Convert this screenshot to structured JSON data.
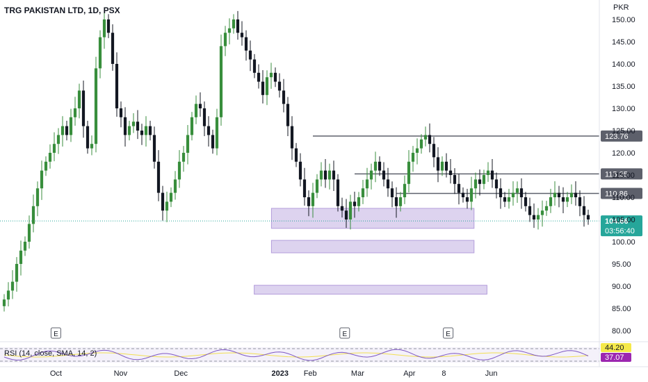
{
  "header": {
    "symbol_title": "TRG PAKISTAN LTD, 1D, PSX",
    "currency": "PKR"
  },
  "price_axis": {
    "ticks": [
      "150.00",
      "145.00",
      "140.00",
      "135.00",
      "130.00",
      "125.00",
      "120.00",
      "115.00",
      "110.00",
      "105.00",
      "100.00",
      "95.00",
      "90.00",
      "85.00",
      "80.00"
    ],
    "tick_values": [
      150,
      145,
      140,
      135,
      130,
      125,
      120,
      115,
      110,
      105,
      100,
      95,
      90,
      85,
      80
    ]
  },
  "time_axis": {
    "labels": [
      "Oct",
      "Nov",
      "Dec",
      "2023",
      "Feb",
      "Mar",
      "Apr",
      "8",
      "Jun"
    ],
    "label_bar_index": [
      12,
      27,
      41,
      64,
      71,
      82,
      94,
      102,
      113
    ]
  },
  "levels": [
    {
      "value": 123.76,
      "label": "123.76",
      "from_bar": 74
    },
    {
      "value": 115.25,
      "label": "115.25",
      "from_bar": 84
    },
    {
      "value": 110.86,
      "label": "110.86",
      "from_bar": 94
    }
  ],
  "last_price": {
    "value": 104.66,
    "label": "104.66",
    "countdown": "03:56:40",
    "color": "#26a69a"
  },
  "zones": [
    {
      "from_bar": 62,
      "to_bar": 109,
      "low": 103,
      "high": 107.5
    },
    {
      "from_bar": 62,
      "to_bar": 109,
      "low": 97.5,
      "high": 100.3
    },
    {
      "from_bar": 58,
      "to_bar": 112,
      "low": 88.2,
      "high": 90.2
    }
  ],
  "earnings_markers": [
    {
      "bar": 12,
      "label": "E"
    },
    {
      "bar": 79,
      "label": "E"
    },
    {
      "bar": 103,
      "label": "E"
    }
  ],
  "rsi": {
    "label": "RSI (14, close, SMA, 14, 2)",
    "value_badges": [
      {
        "label": "44.20",
        "color": "#f5e94a"
      },
      {
        "label": "37.07",
        "color": "#9c27b0"
      }
    ]
  },
  "colors": {
    "up": "#388e3c",
    "down": "#131722",
    "level_line": "#5d606b",
    "zone": "#b39ddb",
    "rsi_line": "#7e57c2",
    "rsi_sma": "#f2df52"
  },
  "chart_data": {
    "type": "candlestick",
    "title": "TRG PAKISTAN LTD, 1D, PSX",
    "ylabel": "PKR",
    "ylim": [
      78,
      152
    ],
    "close": [
      87,
      89,
      91,
      95,
      98,
      100,
      104,
      108,
      112,
      116,
      118,
      120,
      122,
      124,
      126,
      124,
      128,
      130,
      134,
      126,
      121,
      122,
      139,
      146,
      150,
      147,
      140,
      130,
      128,
      124,
      126,
      127,
      125,
      124,
      126,
      124,
      118,
      111,
      107,
      109,
      111,
      114,
      118,
      120,
      124,
      128,
      131,
      130,
      126,
      124,
      121,
      128,
      144,
      147,
      148,
      150,
      147,
      146,
      143,
      141,
      138,
      136,
      133,
      137,
      138,
      136,
      134,
      131,
      126,
      121,
      118,
      114,
      110,
      108,
      111,
      114,
      116,
      114,
      116,
      114,
      108,
      107,
      105,
      109,
      108,
      110,
      112,
      114,
      116,
      118,
      116,
      114,
      112,
      110,
      108,
      110,
      113,
      118,
      120,
      121,
      123,
      124,
      122,
      119,
      116,
      118,
      116,
      115,
      113,
      111,
      110,
      109,
      112,
      114,
      113,
      115,
      116,
      114,
      112,
      110,
      109,
      110,
      111,
      112,
      110,
      108,
      106,
      105,
      106,
      107,
      108,
      110,
      111,
      110,
      109,
      110,
      111,
      110,
      108,
      106,
      105
    ]
  }
}
